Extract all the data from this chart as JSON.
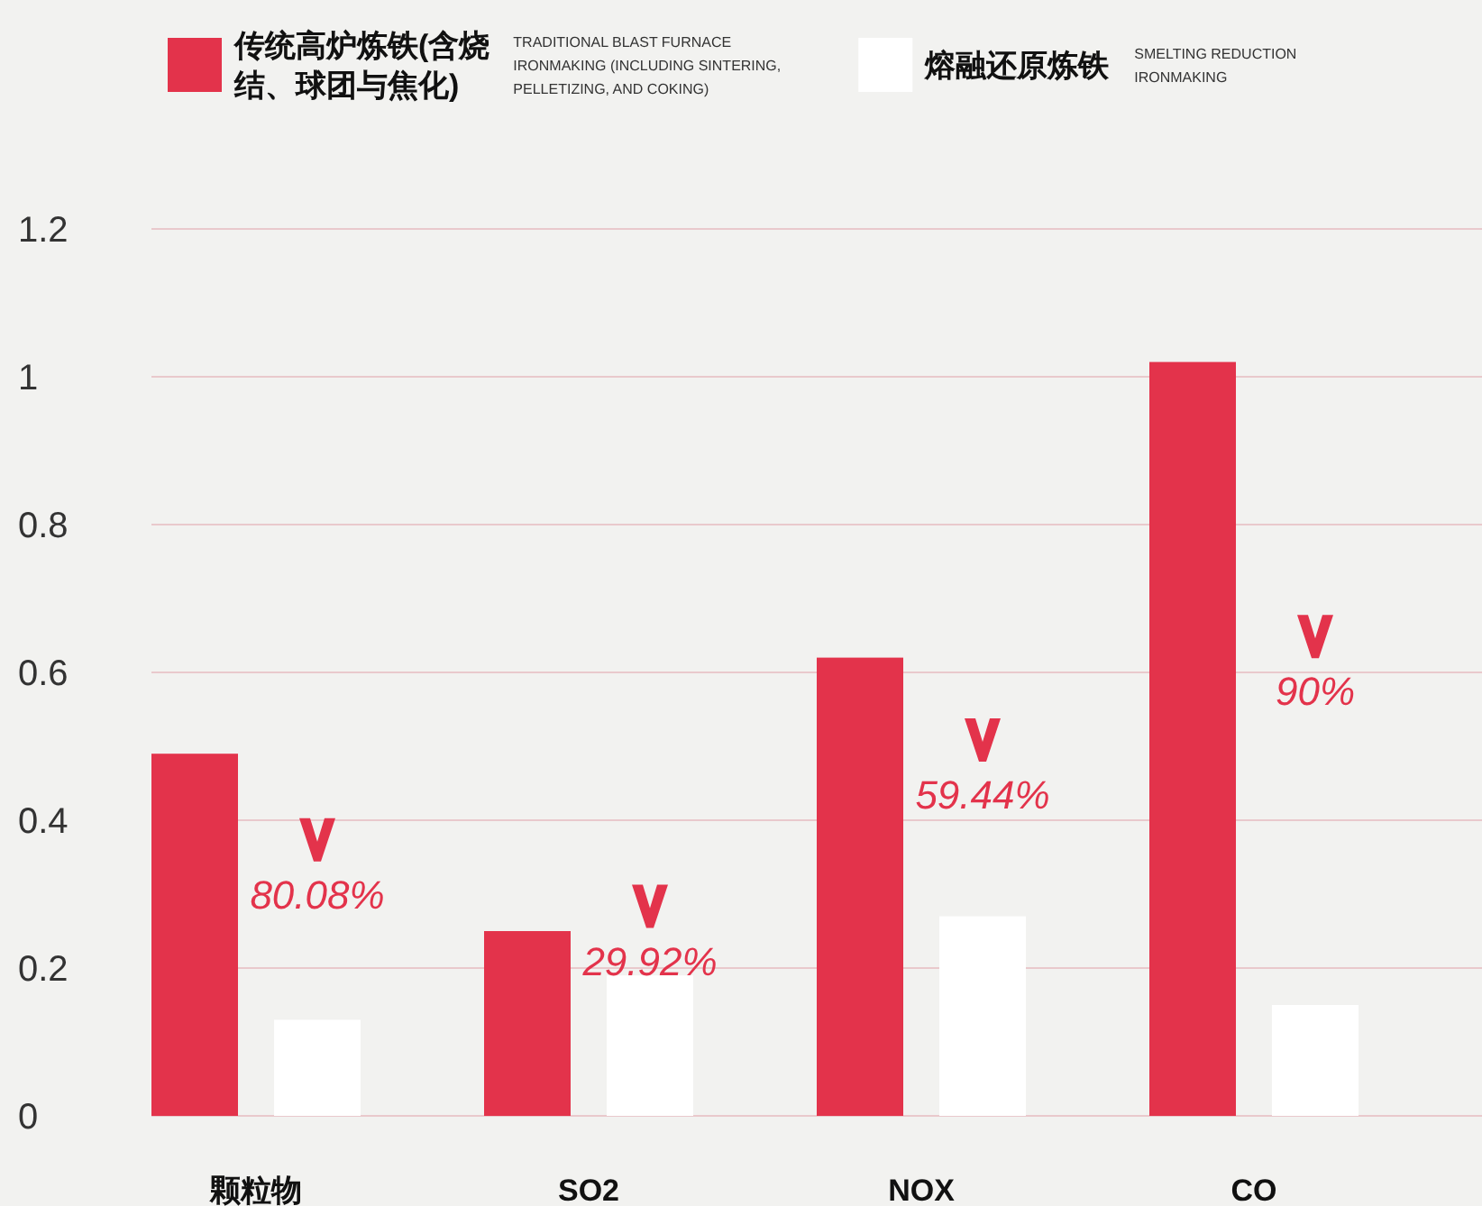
{
  "chart_data": {
    "type": "bar",
    "categories": [
      "颗粒物",
      "SO2",
      "NOX",
      "CO"
    ],
    "series": [
      {
        "name": "传统高炉炼铁(含烧结、球团与焦化)",
        "color": "#e3334b",
        "values": [
          0.49,
          0.25,
          0.62,
          1.02
        ]
      },
      {
        "name": "熔融还原炼铁",
        "color": "#ffffff",
        "values": [
          0.13,
          0.19,
          0.27,
          0.15
        ]
      }
    ],
    "ylim": [
      0,
      1.2
    ],
    "yticks": [
      0,
      0.2,
      0.4,
      0.6,
      0.8,
      1,
      1.2
    ],
    "grid": "y",
    "legend": "top",
    "annotations": [
      "TRADITIONAL BLAST FURNACE IRONMAKING (INCLUDING SINTERING, PELLETIZING, AND COKING)",
      "SMELTING REDUCTION IRONMAKING",
      "80.08%",
      "29.92%",
      "59.44%",
      "90%"
    ]
  }
}
